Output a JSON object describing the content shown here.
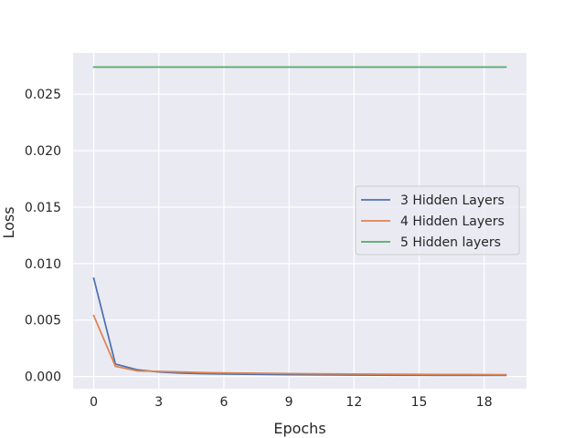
{
  "chart_data": {
    "type": "line",
    "xlabel": "Epochs",
    "ylabel": "Loss",
    "xlim": [
      -0.95,
      19.95
    ],
    "ylim": [
      -0.00108,
      0.02865
    ],
    "xticks": [
      0,
      3,
      6,
      9,
      12,
      15,
      18
    ],
    "yticks": [
      0.0,
      0.005,
      0.01,
      0.015,
      0.02,
      0.025
    ],
    "ytick_labels": [
      "0.000",
      "0.005",
      "0.010",
      "0.015",
      "0.020",
      "0.025"
    ],
    "grid": true,
    "legend_position": "center-right",
    "x": [
      0,
      1,
      2,
      3,
      4,
      5,
      6,
      7,
      8,
      9,
      10,
      11,
      12,
      13,
      14,
      15,
      16,
      17,
      18,
      19
    ],
    "series": [
      {
        "name": "3 Hidden Layers",
        "color": "#4c72b0",
        "values": [
          0.0087,
          0.0011,
          0.0006,
          0.0004,
          0.0003,
          0.00025,
          0.00022,
          0.0002,
          0.00018,
          0.00016,
          0.00015,
          0.00014,
          0.00013,
          0.00012,
          0.00011,
          0.00011,
          0.0001,
          0.0001,
          0.0001,
          0.0001
        ]
      },
      {
        "name": "4 Hidden Layers",
        "color": "#dd8452",
        "values": [
          0.0054,
          0.0009,
          0.0005,
          0.00045,
          0.0004,
          0.00035,
          0.00032,
          0.0003,
          0.00028,
          0.00026,
          0.00024,
          0.00023,
          0.00022,
          0.00021,
          0.0002,
          0.00019,
          0.00018,
          0.00018,
          0.00017,
          0.00016
        ]
      },
      {
        "name": "5 Hidden layers",
        "color": "#55a868",
        "values": [
          0.0274,
          0.0274,
          0.0274,
          0.0274,
          0.0274,
          0.0274,
          0.0274,
          0.0274,
          0.0274,
          0.0274,
          0.0274,
          0.0274,
          0.0274,
          0.0274,
          0.0274,
          0.0274,
          0.0274,
          0.0274,
          0.0274,
          0.0274
        ]
      }
    ]
  }
}
